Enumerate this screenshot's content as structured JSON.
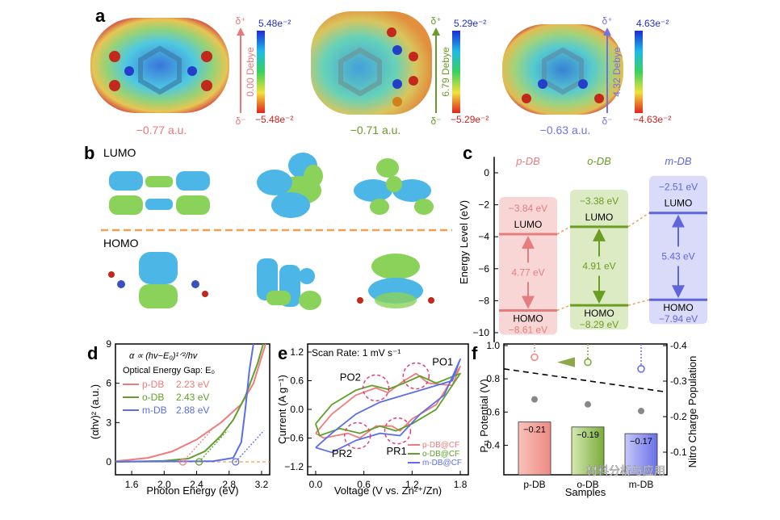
{
  "panels": {
    "a": {
      "label": "a",
      "items": [
        {
          "charge": "−0.77 a.u.",
          "dipole": "0.00 Debye",
          "max": "5.48e⁻²",
          "min": "−5.48e⁻²",
          "dplus": "δ⁺",
          "dminus": "δ⁻",
          "color": "#e8787a"
        },
        {
          "charge": "−0.71 a.u.",
          "dipole": "6.79 Debye",
          "max": "5.29e⁻²",
          "min": "−5.29e⁻²",
          "dplus": "δ⁺",
          "dminus": "δ⁻",
          "color": "#6a9a2a"
        },
        {
          "charge": "−0.63 a.u.",
          "dipole": "4.32 Debye",
          "max": "4.63e⁻²",
          "min": "−4.63e⁻²",
          "dplus": "δ⁺",
          "dminus": "δ⁻",
          "color": "#6f74e0"
        }
      ]
    },
    "b": {
      "label": "b",
      "lumo": "LUMO",
      "homo": "HOMO"
    },
    "c": {
      "label": "c",
      "ylabel": "Energy Level (eV)",
      "yticks": [
        "0",
        "−2",
        "−4",
        "−6",
        "−8",
        "−10"
      ],
      "columns": [
        {
          "name": "p-DB",
          "lumo_val": "−3.84 eV",
          "homo_val": "−8.61 eV",
          "gap": "4.77 eV",
          "lumo": "LUMO",
          "homo": "HOMO",
          "color": "#e57d7f",
          "bg": "#f9d6d6"
        },
        {
          "name": "o-DB",
          "lumo_val": "−3.38 eV",
          "homo_val": "−8.29 eV",
          "gap": "4.91 eV",
          "lumo": "LUMO",
          "homo": "HOMO",
          "color": "#6b9c24",
          "bg": "#dcebc4"
        },
        {
          "name": "m-DB",
          "lumo_val": "−2.51 eV",
          "homo_val": "−7.94 eV",
          "gap": "5.43 eV",
          "lumo": "LUMO",
          "homo": "HOMO",
          "color": "#5f66dc",
          "bg": "#d9dbf8"
        }
      ]
    },
    "d": {
      "label": "d",
      "formula": "α ∝ (hv−E₀)¹ᐟ²/hv",
      "gap_title": "Optical Energy Gap: E₀",
      "xlabel": "Photon Energy (eV)",
      "ylabel": "(αhv)² (a.u.)",
      "xticks": [
        "1.6",
        "2.0",
        "2.4",
        "2.8",
        "3.2"
      ],
      "yticks": [
        "0",
        "3",
        "6",
        "9"
      ],
      "legend": [
        {
          "name": "p-DB",
          "value": "2.23 eV",
          "color": "#ef7c7c"
        },
        {
          "name": "o-DB",
          "value": "2.43 eV",
          "color": "#5fa02a"
        },
        {
          "name": "m-DB",
          "value": "2.88 eV",
          "color": "#5a6ee8"
        }
      ]
    },
    "e": {
      "label": "e",
      "scan": "Scan Rate: 1 mV s⁻¹",
      "xlabel": "Voltage (V vs. Zn²⁺/Zn)",
      "ylabel": "Current (A g⁻¹)",
      "xticks": [
        "0.0",
        "0.6",
        "1.2",
        "1.8"
      ],
      "yticks": [
        "1.2",
        "0.6",
        "0.0",
        "−0.6",
        "−1.2"
      ],
      "peaks": [
        "Pₒ₂",
        "Pₒ₁",
        "Pᵣ₂",
        "Pᵣ₁"
      ],
      "peak_text": [
        "PO2",
        "PO1",
        "PR2",
        "PR1"
      ],
      "legend": [
        {
          "name": "p-DB@CF",
          "color": "#ef7c7c"
        },
        {
          "name": "o-DB@CF",
          "color": "#5fa02a"
        },
        {
          "name": "m-DB@CF",
          "color": "#5a6ee8"
        }
      ]
    },
    "f": {
      "label": "f",
      "ylabel_left": "Pᵣ₁ Potential (V)",
      "ylabel_right": "Nitro Charge Population",
      "xlabel": "Samples",
      "yticks_left": [
        "1.0",
        "0.8",
        "0.6",
        "0.4"
      ],
      "yticks_right": [
        "-0.4",
        "-0.3",
        "-0.2",
        "-0.1"
      ],
      "bars": [
        {
          "name": "p-DB",
          "value": "−0.21",
          "color": "#ef8a86"
        },
        {
          "name": "o-DB",
          "value": "−0.19",
          "color": "#79ad3c"
        },
        {
          "name": "m-DB",
          "value": "−0.17",
          "color": "#6a70e8"
        }
      ]
    }
  },
  "watermark": "材料分析与应用"
}
